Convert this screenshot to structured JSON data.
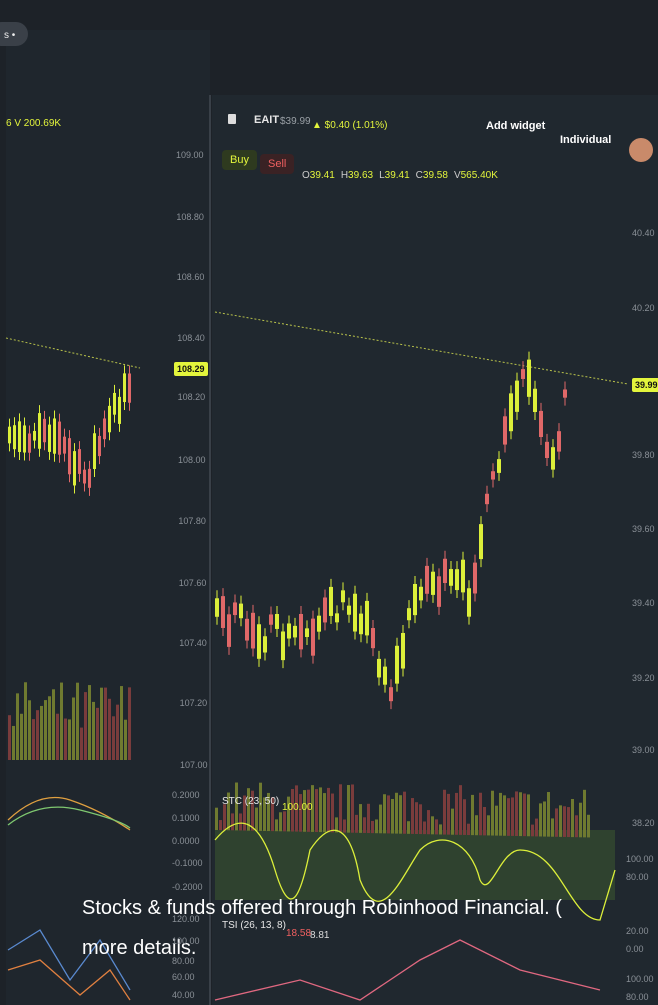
{
  "top_tag": "s •",
  "left_panel": {
    "volume_label": "6 V 200.69K",
    "price_axis": [
      "109.00",
      "108.80",
      "108.60",
      "108.40",
      "108.20",
      "108.00",
      "107.80",
      "107.60",
      "107.40",
      "107.20",
      "107.00"
    ],
    "price_marker": "108.29",
    "indicator_axis": [
      "0.2000",
      "0.1000",
      "0.0000",
      "-0.1000",
      "-0.2000",
      "120.00",
      "100.00",
      "80.00",
      "60.00",
      "40.00"
    ]
  },
  "right_panel": {
    "symbol": "EAIT",
    "price": "$39.99",
    "change": "▲ $0.40 (1.01%)",
    "add_widget": "Add widget",
    "account": "Individual",
    "buy": "Buy",
    "sell": "Sell",
    "ohlcv": [
      {
        "label": "O",
        "value": "39.41"
      },
      {
        "label": "H",
        "value": "39.63"
      },
      {
        "label": "L",
        "value": "39.41"
      },
      {
        "label": "C",
        "value": "39.58"
      },
      {
        "label": "V",
        "value": "565.40K"
      }
    ],
    "price_axis": [
      "40.40",
      "40.20",
      "39.80",
      "39.60",
      "39.40",
      "39.20",
      "39.00",
      "38.20"
    ],
    "price_marker": "39.99",
    "stc": {
      "name": "STC (23, 50)",
      "value": "100.00",
      "axis": [
        "100.00",
        "80.00",
        "20.00",
        "0.00"
      ]
    },
    "tsi": {
      "name": "TSI (26, 13, 8)",
      "values": [
        "18.58",
        "8.81"
      ],
      "axis": [
        "100.00",
        "80.00"
      ]
    }
  },
  "caption": [
    "Stocks & funds offered through Robinhood Financial. (",
    "more details."
  ]
}
